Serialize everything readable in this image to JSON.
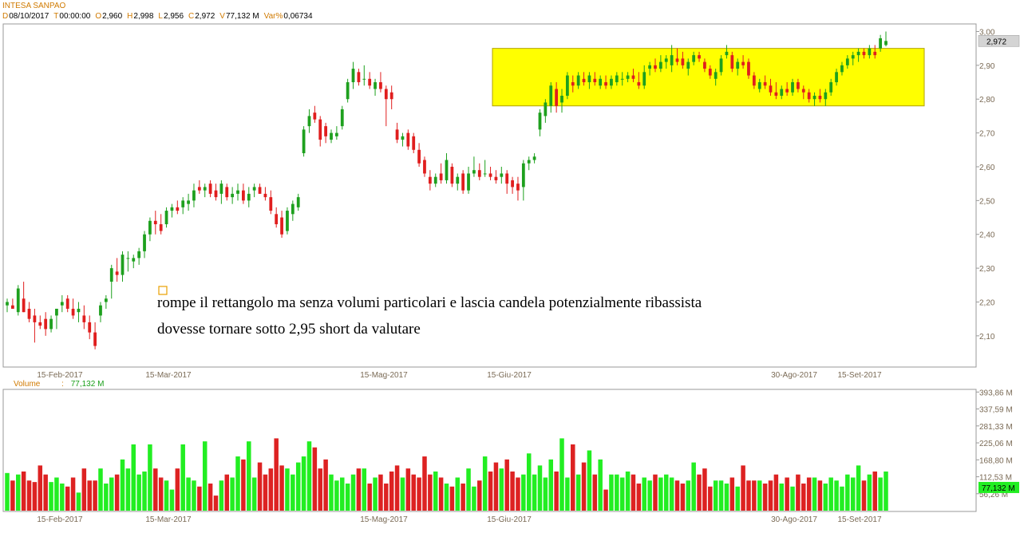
{
  "header": {
    "title": "INTESA SANPAO",
    "fields": [
      {
        "key": "D",
        "value": "08/10/2017"
      },
      {
        "key": "T",
        "value": "00:00:00"
      },
      {
        "key": "O",
        "value": "2,960"
      },
      {
        "key": "H",
        "value": "2,998"
      },
      {
        "key": "L",
        "value": "2,956"
      },
      {
        "key": "C",
        "value": "2,972"
      },
      {
        "key": "V",
        "value": "77,132 M"
      },
      {
        "key": "Var%",
        "value": "0,06734"
      }
    ]
  },
  "volume_panel": {
    "label": "Volume",
    "separator": ":",
    "value": "77,132 M"
  },
  "annotations": [
    "rompe il rettangolo ma senza volumi particolari e lascia candela potenzialmente ribassista",
    "dovesse tornare sotto 2,95 short da valutare"
  ],
  "colors": {
    "up": "#1ea01e",
    "down": "#e01e1e",
    "vol_up": "#22ee22",
    "vol_down": "#dd2222",
    "rectangle": "#ffff00",
    "axis_text": "#7a6a55"
  },
  "chart_data": [
    {
      "type": "candlestick",
      "name": "price",
      "y_ticks": [
        "3,00",
        "2,90",
        "2,80",
        "2,70",
        "2,60",
        "2,50",
        "2,40",
        "2,30",
        "2,20",
        "2,10"
      ],
      "ylim": [
        2.01,
        3.02
      ],
      "last_price_label": "2,972",
      "x_ticks": [
        "15-Feb-2017",
        "15-Mar-2017",
        "15-Mag-2017",
        "15-Giu-2017",
        "30-Ago-2017",
        "15-Set-2017"
      ],
      "highlight_rectangle": {
        "y_low": 2.78,
        "y_high": 2.95
      },
      "ohlc": [
        [
          2.19,
          2.21,
          2.17,
          2.2
        ],
        [
          2.19,
          2.21,
          2.18,
          2.18
        ],
        [
          2.17,
          2.25,
          2.16,
          2.24
        ],
        [
          2.21,
          2.26,
          2.17,
          2.17
        ],
        [
          2.18,
          2.2,
          2.14,
          2.15
        ],
        [
          2.16,
          2.18,
          2.08,
          2.14
        ],
        [
          2.14,
          2.16,
          2.12,
          2.13
        ],
        [
          2.15,
          2.17,
          2.1,
          2.12
        ],
        [
          2.12,
          2.16,
          2.11,
          2.15
        ],
        [
          2.16,
          2.18,
          2.12,
          2.18
        ],
        [
          2.19,
          2.22,
          2.17,
          2.2
        ],
        [
          2.21,
          2.22,
          2.17,
          2.18
        ],
        [
          2.18,
          2.21,
          2.15,
          2.16
        ],
        [
          2.17,
          2.2,
          2.14,
          2.18
        ],
        [
          2.16,
          2.19,
          2.12,
          2.14
        ],
        [
          2.14,
          2.16,
          2.09,
          2.11
        ],
        [
          2.11,
          2.14,
          2.06,
          2.07
        ],
        [
          2.16,
          2.2,
          2.14,
          2.19
        ],
        [
          2.2,
          2.22,
          2.18,
          2.21
        ],
        [
          2.26,
          2.31,
          2.21,
          2.3
        ],
        [
          2.29,
          2.33,
          2.26,
          2.28
        ],
        [
          2.28,
          2.35,
          2.26,
          2.34
        ],
        [
          2.33,
          2.35,
          2.29,
          2.33
        ],
        [
          2.32,
          2.34,
          2.3,
          2.33
        ],
        [
          2.33,
          2.36,
          2.31,
          2.35
        ],
        [
          2.35,
          2.41,
          2.33,
          2.4
        ],
        [
          2.4,
          2.45,
          2.38,
          2.44
        ],
        [
          2.44,
          2.47,
          2.4,
          2.43
        ],
        [
          2.43,
          2.46,
          2.4,
          2.41
        ],
        [
          2.43,
          2.48,
          2.42,
          2.47
        ],
        [
          2.47,
          2.49,
          2.45,
          2.48
        ],
        [
          2.48,
          2.5,
          2.46,
          2.47
        ],
        [
          2.48,
          2.51,
          2.46,
          2.5
        ],
        [
          2.49,
          2.52,
          2.47,
          2.5
        ],
        [
          2.5,
          2.55,
          2.48,
          2.53
        ],
        [
          2.54,
          2.56,
          2.52,
          2.53
        ],
        [
          2.53,
          2.55,
          2.51,
          2.54
        ],
        [
          2.55,
          2.56,
          2.51,
          2.52
        ],
        [
          2.53,
          2.55,
          2.5,
          2.51
        ],
        [
          2.52,
          2.56,
          2.49,
          2.55
        ],
        [
          2.54,
          2.55,
          2.5,
          2.51
        ],
        [
          2.51,
          2.54,
          2.49,
          2.52
        ],
        [
          2.52,
          2.55,
          2.5,
          2.53
        ],
        [
          2.53,
          2.55,
          2.49,
          2.5
        ],
        [
          2.5,
          2.54,
          2.48,
          2.52
        ],
        [
          2.53,
          2.55,
          2.51,
          2.54
        ],
        [
          2.54,
          2.55,
          2.52,
          2.52
        ],
        [
          2.52,
          2.54,
          2.5,
          2.51
        ],
        [
          2.51,
          2.53,
          2.46,
          2.47
        ],
        [
          2.46,
          2.48,
          2.42,
          2.43
        ],
        [
          2.45,
          2.47,
          2.39,
          2.4
        ],
        [
          2.41,
          2.48,
          2.4,
          2.47
        ],
        [
          2.46,
          2.5,
          2.44,
          2.49
        ],
        [
          2.48,
          2.52,
          2.47,
          2.51
        ],
        [
          2.64,
          2.72,
          2.63,
          2.71
        ],
        [
          2.72,
          2.77,
          2.7,
          2.75
        ],
        [
          2.76,
          2.78,
          2.73,
          2.74
        ],
        [
          2.74,
          2.75,
          2.66,
          2.68
        ],
        [
          2.72,
          2.73,
          2.67,
          2.69
        ],
        [
          2.68,
          2.71,
          2.67,
          2.7
        ],
        [
          2.69,
          2.72,
          2.68,
          2.7
        ],
        [
          2.72,
          2.78,
          2.71,
          2.77
        ],
        [
          2.8,
          2.86,
          2.79,
          2.85
        ],
        [
          2.85,
          2.91,
          2.83,
          2.89
        ],
        [
          2.88,
          2.89,
          2.84,
          2.85
        ],
        [
          2.86,
          2.9,
          2.84,
          2.86
        ],
        [
          2.86,
          2.88,
          2.83,
          2.84
        ],
        [
          2.83,
          2.86,
          2.81,
          2.85
        ],
        [
          2.85,
          2.88,
          2.82,
          2.83
        ],
        [
          2.83,
          2.84,
          2.72,
          2.8
        ],
        [
          2.82,
          2.84,
          2.77,
          2.8
        ],
        [
          2.71,
          2.73,
          2.67,
          2.68
        ],
        [
          2.68,
          2.7,
          2.66,
          2.69
        ],
        [
          2.7,
          2.71,
          2.65,
          2.66
        ],
        [
          2.69,
          2.7,
          2.64,
          2.65
        ],
        [
          2.65,
          2.67,
          2.6,
          2.61
        ],
        [
          2.62,
          2.63,
          2.57,
          2.58
        ],
        [
          2.57,
          2.59,
          2.53,
          2.55
        ],
        [
          2.55,
          2.58,
          2.54,
          2.57
        ],
        [
          2.58,
          2.61,
          2.55,
          2.56
        ],
        [
          2.56,
          2.64,
          2.55,
          2.62
        ],
        [
          2.6,
          2.61,
          2.54,
          2.55
        ],
        [
          2.55,
          2.58,
          2.53,
          2.57
        ],
        [
          2.58,
          2.59,
          2.52,
          2.53
        ],
        [
          2.53,
          2.6,
          2.52,
          2.58
        ],
        [
          2.58,
          2.63,
          2.57,
          2.59
        ],
        [
          2.59,
          2.61,
          2.56,
          2.57
        ],
        [
          2.58,
          2.62,
          2.57,
          2.58
        ],
        [
          2.58,
          2.6,
          2.56,
          2.57
        ],
        [
          2.57,
          2.59,
          2.55,
          2.56
        ],
        [
          2.57,
          2.6,
          2.55,
          2.58
        ],
        [
          2.58,
          2.59,
          2.52,
          2.55
        ],
        [
          2.56,
          2.57,
          2.52,
          2.54
        ],
        [
          2.55,
          2.57,
          2.5,
          2.53
        ],
        [
          2.54,
          2.62,
          2.5,
          2.61
        ],
        [
          2.61,
          2.63,
          2.59,
          2.62
        ],
        [
          2.62,
          2.64,
          2.61,
          2.63
        ],
        [
          2.71,
          2.77,
          2.69,
          2.76
        ],
        [
          2.75,
          2.8,
          2.73,
          2.79
        ],
        [
          2.78,
          2.85,
          2.76,
          2.84
        ],
        [
          2.83,
          2.85,
          2.76,
          2.78
        ],
        [
          2.79,
          2.83,
          2.76,
          2.81
        ],
        [
          2.81,
          2.88,
          2.8,
          2.87
        ],
        [
          2.85,
          2.87,
          2.82,
          2.84
        ],
        [
          2.84,
          2.88,
          2.83,
          2.87
        ],
        [
          2.86,
          2.88,
          2.84,
          2.85
        ],
        [
          2.85,
          2.88,
          2.83,
          2.87
        ],
        [
          2.86,
          2.88,
          2.84,
          2.85
        ],
        [
          2.84,
          2.87,
          2.83,
          2.86
        ],
        [
          2.85,
          2.87,
          2.83,
          2.84
        ],
        [
          2.84,
          2.87,
          2.83,
          2.86
        ],
        [
          2.85,
          2.88,
          2.84,
          2.87
        ],
        [
          2.86,
          2.88,
          2.84,
          2.86
        ],
        [
          2.86,
          2.88,
          2.85,
          2.87
        ],
        [
          2.87,
          2.89,
          2.85,
          2.86
        ],
        [
          2.85,
          2.88,
          2.83,
          2.84
        ],
        [
          2.84,
          2.9,
          2.83,
          2.88
        ],
        [
          2.89,
          2.91,
          2.87,
          2.9
        ],
        [
          2.9,
          2.92,
          2.88,
          2.89
        ],
        [
          2.89,
          2.93,
          2.88,
          2.91
        ],
        [
          2.91,
          2.93,
          2.89,
          2.92
        ],
        [
          2.9,
          2.96,
          2.88,
          2.93
        ],
        [
          2.92,
          2.95,
          2.9,
          2.91
        ],
        [
          2.92,
          2.94,
          2.89,
          2.9
        ],
        [
          2.89,
          2.92,
          2.87,
          2.91
        ],
        [
          2.91,
          2.94,
          2.9,
          2.93
        ],
        [
          2.93,
          2.94,
          2.91,
          2.92
        ],
        [
          2.91,
          2.92,
          2.88,
          2.89
        ],
        [
          2.89,
          2.9,
          2.86,
          2.87
        ],
        [
          2.86,
          2.89,
          2.84,
          2.88
        ],
        [
          2.88,
          2.93,
          2.87,
          2.92
        ],
        [
          2.93,
          2.96,
          2.92,
          2.94
        ],
        [
          2.93,
          2.94,
          2.88,
          2.89
        ],
        [
          2.89,
          2.92,
          2.87,
          2.91
        ],
        [
          2.91,
          2.93,
          2.89,
          2.9
        ],
        [
          2.91,
          2.92,
          2.86,
          2.87
        ],
        [
          2.87,
          2.88,
          2.83,
          2.84
        ],
        [
          2.83,
          2.86,
          2.82,
          2.85
        ],
        [
          2.85,
          2.87,
          2.83,
          2.84
        ],
        [
          2.84,
          2.86,
          2.81,
          2.82
        ],
        [
          2.82,
          2.85,
          2.8,
          2.81
        ],
        [
          2.81,
          2.84,
          2.8,
          2.83
        ],
        [
          2.83,
          2.85,
          2.81,
          2.82
        ],
        [
          2.82,
          2.86,
          2.81,
          2.85
        ],
        [
          2.85,
          2.86,
          2.82,
          2.83
        ],
        [
          2.83,
          2.84,
          2.8,
          2.82
        ],
        [
          2.82,
          2.83,
          2.79,
          2.8
        ],
        [
          2.8,
          2.82,
          2.78,
          2.81
        ],
        [
          2.81,
          2.83,
          2.79,
          2.8
        ],
        [
          2.8,
          2.83,
          2.78,
          2.82
        ],
        [
          2.82,
          2.86,
          2.81,
          2.85
        ],
        [
          2.85,
          2.89,
          2.84,
          2.88
        ],
        [
          2.88,
          2.91,
          2.87,
          2.9
        ],
        [
          2.9,
          2.93,
          2.89,
          2.92
        ],
        [
          2.92,
          2.94,
          2.9,
          2.93
        ],
        [
          2.93,
          2.95,
          2.91,
          2.94
        ],
        [
          2.94,
          2.95,
          2.92,
          2.93
        ],
        [
          2.93,
          2.96,
          2.92,
          2.95
        ],
        [
          2.94,
          2.96,
          2.92,
          2.93
        ],
        [
          2.95,
          2.99,
          2.94,
          2.98
        ],
        [
          2.96,
          3.0,
          2.956,
          2.972
        ]
      ]
    },
    {
      "type": "bar",
      "name": "volume",
      "y_ticks": [
        "393,86 M",
        "337,59 M",
        "281,33 M",
        "225,06 M",
        "168,80 M",
        "112,53 M",
        "56,26 M"
      ],
      "ylim": [
        0,
        400
      ],
      "last_volume_label": "77,132 M",
      "units": "M",
      "values": [
        125,
        100,
        120,
        130,
        100,
        95,
        150,
        120,
        95,
        110,
        90,
        80,
        110,
        60,
        140,
        100,
        100,
        140,
        90,
        110,
        120,
        170,
        140,
        220,
        120,
        130,
        220,
        140,
        110,
        100,
        70,
        140,
        220,
        110,
        100,
        80,
        230,
        90,
        50,
        100,
        120,
        110,
        180,
        170,
        230,
        110,
        160,
        120,
        140,
        240,
        150,
        140,
        120,
        160,
        180,
        230,
        210,
        140,
        170,
        120,
        100,
        110,
        90,
        120,
        140,
        140,
        90,
        110,
        120,
        90,
        130,
        150,
        110,
        140,
        120,
        110,
        180,
        120,
        130,
        110,
        90,
        80,
        110,
        90,
        140,
        80,
        100,
        180,
        130,
        160,
        140,
        170,
        130,
        110,
        120,
        190,
        120,
        150,
        110,
        170,
        130,
        240,
        110,
        220,
        120,
        160,
        200,
        120,
        170,
        70,
        120,
        120,
        110,
        130,
        120,
        90,
        110,
        100,
        120,
        110,
        120,
        110,
        100,
        90,
        100,
        160,
        120,
        140,
        80,
        100,
        100,
        90,
        110,
        80,
        150,
        100,
        100,
        100,
        90,
        100,
        120,
        90,
        110,
        80,
        120,
        90,
        110,
        110,
        100,
        90,
        110,
        100,
        80,
        120,
        110,
        150,
        100,
        120,
        130,
        110,
        130,
        80,
        120,
        90,
        80,
        120,
        90,
        140,
        100,
        110,
        77
      ]
    }
  ]
}
